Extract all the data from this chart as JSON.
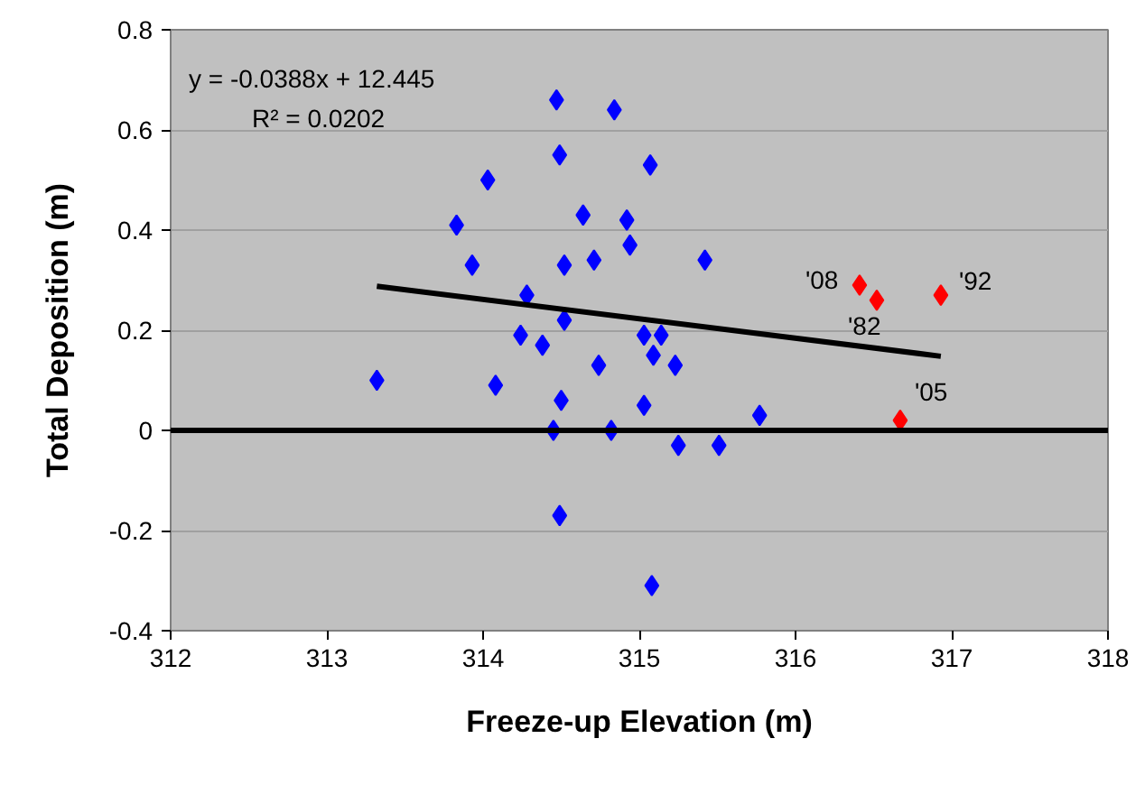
{
  "chart_data": {
    "type": "scatter",
    "xlabel": "Freeze-up Elevation (m)",
    "ylabel": "Total Deposition (m)",
    "xlim": [
      312,
      318
    ],
    "xticks": [
      312,
      313,
      314,
      315,
      316,
      317,
      318
    ],
    "ylim": [
      -0.4,
      0.8
    ],
    "yticks": [
      -0.4,
      -0.2,
      0,
      0.2,
      0.4,
      0.6,
      0.8
    ],
    "grid": "y",
    "series": [
      {
        "marker": "diamond",
        "color": "#0000ff",
        "x": [
          314.47,
          314.84,
          314.49,
          315.07,
          314.03,
          313.83,
          314.64,
          314.92,
          314.94,
          313.93,
          314.52,
          314.71,
          315.42,
          314.28,
          314.52,
          314.24,
          314.38,
          315.03,
          315.14,
          315.09,
          315.23,
          314.74,
          313.32,
          314.08,
          314.5,
          315.03,
          314.45,
          314.82,
          315.25,
          314.49,
          315.08,
          315.77,
          315.51
        ],
        "values": [
          0.66,
          0.64,
          0.55,
          0.53,
          0.5,
          0.41,
          0.43,
          0.42,
          0.37,
          0.33,
          0.33,
          0.34,
          0.34,
          0.27,
          0.22,
          0.19,
          0.17,
          0.19,
          0.19,
          0.15,
          0.13,
          0.13,
          0.1,
          0.09,
          0.06,
          0.05,
          0.0,
          0.0,
          -0.03,
          -0.17,
          -0.31,
          0.03,
          -0.03
        ]
      },
      {
        "marker": "diamond",
        "color": "#ff0000",
        "x": [
          316.41,
          316.52,
          316.93,
          316.67
        ],
        "values": [
          0.29,
          0.26,
          0.27,
          0.02
        ]
      },
      {
        "type": "line",
        "marker": "none",
        "color": "#000000",
        "x": [
          313.32,
          316.93
        ],
        "values": [
          0.288,
          0.148
        ]
      }
    ],
    "ref_lines": [
      {
        "axis": "y",
        "value": 0,
        "color": "#000000"
      }
    ],
    "annotations": [
      "y = -0.0388x + 12.445",
      "R² = 0.0202",
      {
        "text": "'08",
        "x": 316.41,
        "y": 0.29
      },
      {
        "text": "'82",
        "x": 316.52,
        "y": 0.26
      },
      {
        "text": "'92",
        "x": 316.93,
        "y": 0.27
      },
      {
        "text": "'05",
        "x": 316.67,
        "y": 0.02
      }
    ]
  }
}
